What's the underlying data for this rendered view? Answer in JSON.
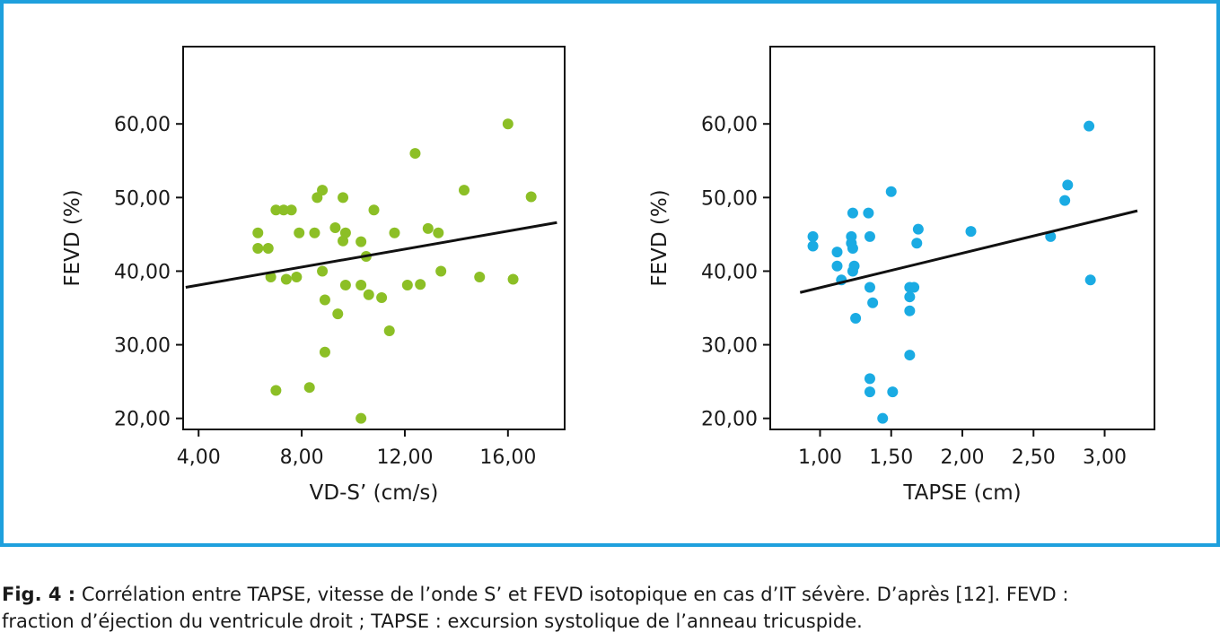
{
  "colors": {
    "border": "#1ea0dd",
    "left_points": "#8cbf26",
    "right_points": "#1aabe3",
    "line": "#111111"
  },
  "caption": {
    "label": "Fig. 4 :",
    "line1": " Corrélation entre TAPSE, vitesse de l’onde S’ et FEVD isotopique en cas d’IT sévère. D’après [12]. FEVD :",
    "line2": "fraction d’éjection du ventricule droit ; TAPSE : excursion systolique de l’anneau tricuspide."
  },
  "chart_data": [
    {
      "type": "scatter",
      "xlabel": "VD-S’ (cm/s)",
      "ylabel": "FEVD (%)",
      "xlim": [
        3.4,
        18.2
      ],
      "ylim": [
        18.5,
        70.5
      ],
      "xticks": [
        4,
        8,
        12,
        16
      ],
      "xtick_labels": [
        "4,00",
        "8,00",
        "12,00",
        "16,00"
      ],
      "yticks": [
        20,
        30,
        40,
        50,
        60
      ],
      "ytick_labels": [
        "20,00",
        "30,00",
        "40,00",
        "50,00",
        "60,00"
      ],
      "grid": false,
      "fit_line": {
        "x": [
          3.5,
          17.9
        ],
        "y": [
          37.8,
          46.6
        ]
      },
      "points": [
        [
          6.3,
          45.2
        ],
        [
          6.3,
          43.1
        ],
        [
          6.7,
          43.1
        ],
        [
          6.8,
          39.2
        ],
        [
          7.0,
          48.3
        ],
        [
          7.3,
          48.3
        ],
        [
          7.4,
          38.9
        ],
        [
          7.6,
          48.3
        ],
        [
          7.8,
          39.2
        ],
        [
          7.9,
          45.2
        ],
        [
          7.0,
          23.8
        ],
        [
          8.3,
          24.2
        ],
        [
          8.5,
          45.2
        ],
        [
          8.6,
          50.0
        ],
        [
          8.8,
          51.0
        ],
        [
          8.8,
          40.0
        ],
        [
          8.9,
          36.1
        ],
        [
          8.9,
          29.0
        ],
        [
          9.3,
          45.9
        ],
        [
          9.4,
          34.2
        ],
        [
          9.6,
          44.1
        ],
        [
          9.6,
          50.0
        ],
        [
          9.7,
          45.2
        ],
        [
          9.7,
          38.1
        ],
        [
          10.3,
          44.0
        ],
        [
          10.3,
          38.1
        ],
        [
          10.5,
          42.0
        ],
        [
          10.6,
          36.8
        ],
        [
          10.8,
          48.3
        ],
        [
          11.1,
          36.4
        ],
        [
          11.4,
          31.9
        ],
        [
          11.6,
          45.2
        ],
        [
          12.1,
          38.1
        ],
        [
          12.4,
          56.0
        ],
        [
          12.6,
          38.2
        ],
        [
          12.9,
          45.8
        ],
        [
          13.3,
          45.2
        ],
        [
          13.4,
          40.0
        ],
        [
          14.3,
          51.0
        ],
        [
          14.9,
          39.2
        ],
        [
          16.0,
          60.0
        ],
        [
          16.2,
          38.9
        ],
        [
          16.9,
          50.1
        ],
        [
          10.3,
          20.0
        ]
      ]
    },
    {
      "type": "scatter",
      "xlabel": "TAPSE (cm)",
      "ylabel": "FEVD (%)",
      "xlim": [
        0.65,
        3.35
      ],
      "ylim": [
        18.5,
        70.5
      ],
      "xticks": [
        1.0,
        1.5,
        2.0,
        2.5,
        3.0
      ],
      "xtick_labels": [
        "1,00",
        "1,50",
        "2,00",
        "2,50",
        "3,00"
      ],
      "yticks": [
        20,
        30,
        40,
        50,
        60
      ],
      "ytick_labels": [
        "20,00",
        "30,00",
        "40,00",
        "50,00",
        "60,00"
      ],
      "grid": false,
      "fit_line": {
        "x": [
          0.86,
          3.23
        ],
        "y": [
          37.1,
          48.2
        ]
      },
      "points": [
        [
          0.95,
          44.7
        ],
        [
          0.95,
          43.4
        ],
        [
          1.12,
          42.6
        ],
        [
          1.12,
          40.7
        ],
        [
          1.15,
          38.8
        ],
        [
          1.22,
          44.7
        ],
        [
          1.22,
          43.8
        ],
        [
          1.23,
          47.9
        ],
        [
          1.23,
          43.1
        ],
        [
          1.23,
          40.0
        ],
        [
          1.24,
          40.7
        ],
        [
          1.25,
          33.6
        ],
        [
          1.34,
          47.9
        ],
        [
          1.35,
          44.7
        ],
        [
          1.35,
          37.8
        ],
        [
          1.35,
          25.4
        ],
        [
          1.35,
          23.6
        ],
        [
          1.37,
          35.7
        ],
        [
          1.44,
          20.0
        ],
        [
          1.5,
          50.8
        ],
        [
          1.51,
          23.6
        ],
        [
          1.63,
          37.8
        ],
        [
          1.63,
          36.5
        ],
        [
          1.63,
          34.6
        ],
        [
          1.63,
          28.6
        ],
        [
          1.66,
          37.8
        ],
        [
          1.68,
          43.8
        ],
        [
          1.69,
          45.7
        ],
        [
          2.06,
          45.4
        ],
        [
          2.62,
          44.7
        ],
        [
          2.72,
          49.6
        ],
        [
          2.74,
          51.7
        ],
        [
          2.89,
          59.7
        ],
        [
          2.9,
          38.8
        ]
      ]
    }
  ]
}
